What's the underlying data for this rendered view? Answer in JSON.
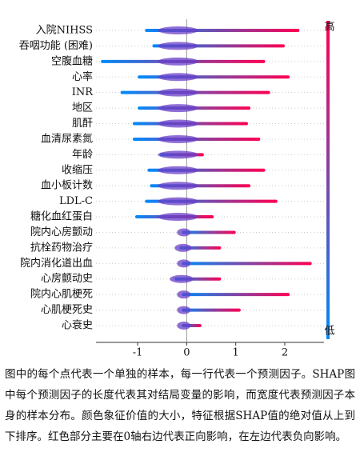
{
  "chart_data": {
    "type": "beeswarm",
    "categories": [
      "入院NIHSS",
      "吞咽功能 (困难)",
      "空腹血糖",
      "心率",
      "INR",
      "地区",
      "肌酐",
      "血清尿素氮",
      "年龄",
      "收缩压",
      "血小板计数",
      "LDL-C",
      "糖化血红蛋白",
      "院内心房颤动",
      "抗栓药物治疗",
      "院内消化道出血",
      "心房颤动史",
      "院内心肌梗死",
      "心肌梗死史",
      "心衰史"
    ],
    "min_values": [
      -0.85,
      -0.7,
      -1.75,
      -1.0,
      -1.35,
      -1.0,
      -1.1,
      -1.1,
      -0.55,
      -0.8,
      -0.75,
      -0.85,
      -1.05,
      -0.1,
      -0.15,
      -0.1,
      -0.25,
      -0.1,
      -0.1,
      -0.1
    ],
    "max_values": [
      2.3,
      2.0,
      1.6,
      2.1,
      1.7,
      1.3,
      1.25,
      1.5,
      0.35,
      1.6,
      1.3,
      1.85,
      0.55,
      1.0,
      0.7,
      2.55,
      0.7,
      2.1,
      1.1,
      0.3
    ],
    "xlim": [
      -1.85,
      2.8
    ],
    "xticks": [
      -1,
      0,
      1,
      2
    ],
    "colorbar": {
      "high": "高",
      "low": "低",
      "high_color": "#ff0051",
      "low_color": "#008bfb"
    }
  },
  "caption": "图中的每个点代表一个单独的样本，每一行代表一个预测因子。SHAP图中每个预测因子的长度代表其对结局变量的影响，而宽度代表预测因子本身的样本分布。颜色象征价值的大小，特征根据SHAP值的绝对值从上到下排序。红色部分主要在0轴右边代表正向影响，在左边代表负向影响。"
}
